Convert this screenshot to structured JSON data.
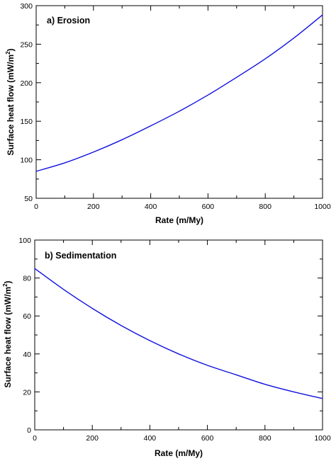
{
  "chart_data": [
    {
      "type": "line",
      "title": "a) Erosion",
      "xlabel": "Rate (m/My)",
      "ylabel_main": "Surface heat flow (mW/m",
      "ylabel_sup": "2",
      "ylabel_tail": ")",
      "xlim": [
        0,
        1000
      ],
      "ylim": [
        50,
        300
      ],
      "xticks": [
        0,
        200,
        400,
        600,
        800,
        1000
      ],
      "yticks": [
        50,
        100,
        150,
        200,
        250,
        300
      ],
      "xminor_step": 100,
      "yminor_step": 25,
      "color": "#1010e0",
      "series": [
        {
          "x": [
            0,
            100,
            200,
            300,
            400,
            500,
            600,
            700,
            800,
            900,
            1000
          ],
          "values": [
            85,
            96,
            110,
            126,
            144,
            163,
            184,
            207,
            231,
            258,
            288
          ]
        }
      ]
    },
    {
      "type": "line",
      "title": "b) Sedimentation",
      "xlabel": "Rate (m/My)",
      "ylabel_main": "Surface heat flow (mW/m",
      "ylabel_sup": "2",
      "ylabel_tail": ")",
      "xlim": [
        0,
        1000
      ],
      "ylim": [
        0,
        100
      ],
      "xticks": [
        0,
        200,
        400,
        600,
        800,
        1000
      ],
      "yticks": [
        0,
        20,
        40,
        60,
        80,
        100
      ],
      "xminor_step": 100,
      "yminor_step": 10,
      "color": "#1010e0",
      "series": [
        {
          "x": [
            0,
            100,
            200,
            300,
            400,
            500,
            600,
            700,
            800,
            900,
            1000
          ],
          "values": [
            85,
            74,
            64,
            55,
            47,
            40,
            34,
            29,
            24,
            20,
            16.5
          ]
        }
      ]
    }
  ]
}
